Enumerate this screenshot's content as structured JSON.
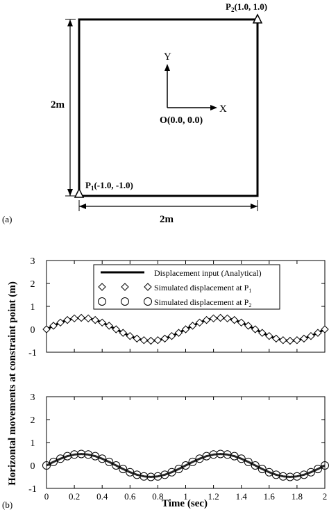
{
  "diagram": {
    "panel_label": "(a)",
    "p1_main": "P",
    "p1_sub": "1",
    "p1_coords": "(-1.0, -1.0)",
    "p2_main": "P",
    "p2_sub": "2",
    "p2_coords": "(1.0, 1.0)",
    "origin_label": "O(0.0, 0.0)",
    "x_axis_label": "X",
    "y_axis_label": "Y",
    "height_dim": "2m",
    "width_dim": "2m"
  },
  "chart_data": [
    {
      "type": "line",
      "panel_label": "(b)",
      "xlabel": "Time (sec)",
      "ylabel": "Horizontal movements at constraint point (m)",
      "xlim": [
        0,
        2
      ],
      "ylim": [
        -1,
        3
      ],
      "xticks": [
        "0",
        "0.2",
        "0.4",
        "0.6",
        "0.8",
        "1",
        "1.2",
        "1.4",
        "1.6",
        "1.8",
        "2"
      ],
      "yticks": [
        "3",
        "2",
        "1",
        "0",
        "-1"
      ],
      "legend_position": "top-center",
      "legend": [
        {
          "label": "Displacement input (Analytical)"
        },
        {
          "label_main": "Simulated displacement at P",
          "label_sub": "1"
        },
        {
          "label_main": "Simulated displacement at P",
          "label_sub": "2"
        }
      ],
      "series": [
        {
          "name": "Displacement input (Analytical)",
          "style": "line",
          "x": [
            0,
            0.05,
            0.1,
            0.15,
            0.2,
            0.25,
            0.3,
            0.35,
            0.4,
            0.45,
            0.5,
            0.55,
            0.6,
            0.65,
            0.7,
            0.75,
            0.8,
            0.85,
            0.9,
            0.95,
            1.0,
            1.05,
            1.1,
            1.15,
            1.2,
            1.25,
            1.3,
            1.35,
            1.4,
            1.45,
            1.5,
            1.55,
            1.6,
            1.65,
            1.7,
            1.75,
            1.8,
            1.85,
            1.9,
            1.95,
            2.0
          ],
          "y": [
            0,
            0.155,
            0.294,
            0.405,
            0.476,
            0.5,
            0.476,
            0.405,
            0.294,
            0.155,
            0,
            -0.155,
            -0.294,
            -0.405,
            -0.476,
            -0.5,
            -0.476,
            -0.405,
            -0.294,
            -0.155,
            0,
            0.155,
            0.294,
            0.405,
            0.476,
            0.5,
            0.476,
            0.405,
            0.294,
            0.155,
            0,
            -0.155,
            -0.294,
            -0.405,
            -0.476,
            -0.5,
            -0.476,
            -0.405,
            -0.294,
            -0.155,
            0
          ]
        },
        {
          "name": "Simulated displacement at P1",
          "style": "diamond",
          "x": [
            0,
            0.05,
            0.1,
            0.15,
            0.2,
            0.25,
            0.3,
            0.35,
            0.4,
            0.45,
            0.5,
            0.55,
            0.6,
            0.65,
            0.7,
            0.75,
            0.8,
            0.85,
            0.9,
            0.95,
            1.0,
            1.05,
            1.1,
            1.15,
            1.2,
            1.25,
            1.3,
            1.35,
            1.4,
            1.45,
            1.5,
            1.55,
            1.6,
            1.65,
            1.7,
            1.75,
            1.8,
            1.85,
            1.9,
            1.95,
            2.0
          ],
          "y": [
            0,
            0.155,
            0.294,
            0.405,
            0.476,
            0.5,
            0.476,
            0.405,
            0.294,
            0.155,
            0,
            -0.155,
            -0.294,
            -0.405,
            -0.476,
            -0.5,
            -0.476,
            -0.405,
            -0.294,
            -0.155,
            0,
            0.155,
            0.294,
            0.405,
            0.476,
            0.5,
            0.476,
            0.405,
            0.294,
            0.155,
            0,
            -0.155,
            -0.294,
            -0.405,
            -0.476,
            -0.5,
            -0.476,
            -0.405,
            -0.294,
            -0.155,
            0
          ]
        }
      ]
    },
    {
      "type": "line",
      "xlim": [
        0,
        2
      ],
      "ylim": [
        -1,
        3
      ],
      "xticks": [
        "0",
        "0.2",
        "0.4",
        "0.6",
        "0.8",
        "1",
        "1.2",
        "1.4",
        "1.6",
        "1.8",
        "2"
      ],
      "yticks": [
        "3",
        "2",
        "1",
        "0",
        "-1"
      ],
      "series": [
        {
          "name": "Displacement input (Analytical)",
          "style": "line",
          "x": [
            0,
            0.05,
            0.1,
            0.15,
            0.2,
            0.25,
            0.3,
            0.35,
            0.4,
            0.45,
            0.5,
            0.55,
            0.6,
            0.65,
            0.7,
            0.75,
            0.8,
            0.85,
            0.9,
            0.95,
            1.0,
            1.05,
            1.1,
            1.15,
            1.2,
            1.25,
            1.3,
            1.35,
            1.4,
            1.45,
            1.5,
            1.55,
            1.6,
            1.65,
            1.7,
            1.75,
            1.8,
            1.85,
            1.9,
            1.95,
            2.0
          ],
          "y": [
            0,
            0.155,
            0.294,
            0.405,
            0.476,
            0.5,
            0.476,
            0.405,
            0.294,
            0.155,
            0,
            -0.155,
            -0.294,
            -0.405,
            -0.476,
            -0.5,
            -0.476,
            -0.405,
            -0.294,
            -0.155,
            0,
            0.155,
            0.294,
            0.405,
            0.476,
            0.5,
            0.476,
            0.405,
            0.294,
            0.155,
            0,
            -0.155,
            -0.294,
            -0.405,
            -0.476,
            -0.5,
            -0.476,
            -0.405,
            -0.294,
            -0.155,
            0
          ]
        },
        {
          "name": "Simulated displacement at P2",
          "style": "circle",
          "x": [
            0,
            0.05,
            0.1,
            0.15,
            0.2,
            0.25,
            0.3,
            0.35,
            0.4,
            0.45,
            0.5,
            0.55,
            0.6,
            0.65,
            0.7,
            0.75,
            0.8,
            0.85,
            0.9,
            0.95,
            1.0,
            1.05,
            1.1,
            1.15,
            1.2,
            1.25,
            1.3,
            1.35,
            1.4,
            1.45,
            1.5,
            1.55,
            1.6,
            1.65,
            1.7,
            1.75,
            1.8,
            1.85,
            1.9,
            1.95,
            2.0
          ],
          "y": [
            0,
            0.155,
            0.294,
            0.405,
            0.476,
            0.5,
            0.476,
            0.405,
            0.294,
            0.155,
            0,
            -0.155,
            -0.294,
            -0.405,
            -0.476,
            -0.5,
            -0.476,
            -0.405,
            -0.294,
            -0.155,
            0,
            0.155,
            0.294,
            0.405,
            0.476,
            0.5,
            0.476,
            0.405,
            0.294,
            0.155,
            0,
            -0.155,
            -0.294,
            -0.405,
            -0.476,
            -0.5,
            -0.476,
            -0.405,
            -0.294,
            -0.155,
            0
          ]
        }
      ]
    }
  ]
}
